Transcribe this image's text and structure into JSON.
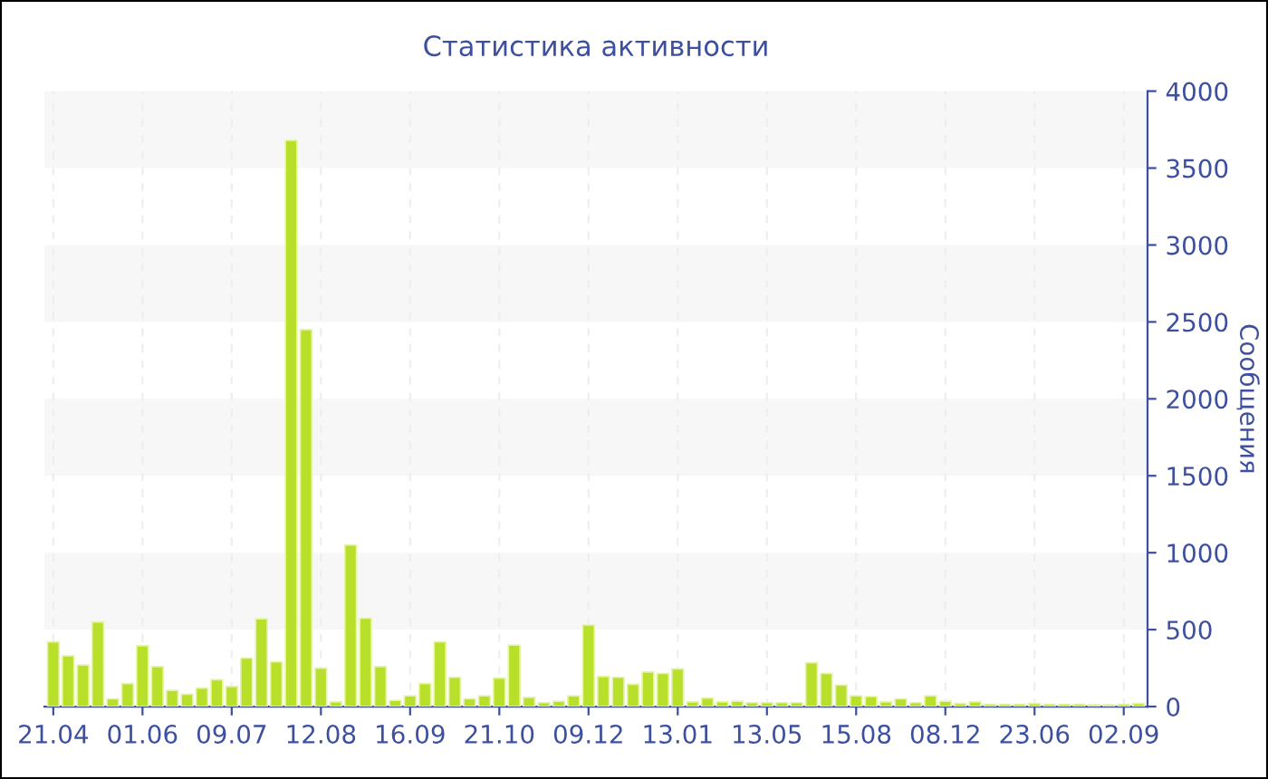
{
  "chart_data": {
    "type": "bar",
    "title": "Статистика активности",
    "ylabel": "Сообщения",
    "categories": [
      "21.04",
      null,
      null,
      null,
      null,
      null,
      "01.06",
      null,
      null,
      null,
      null,
      null,
      "09.07",
      null,
      null,
      null,
      null,
      null,
      "12.08",
      null,
      null,
      null,
      null,
      null,
      "16.09",
      null,
      null,
      null,
      null,
      null,
      "21.10",
      null,
      null,
      null,
      null,
      null,
      "09.12",
      null,
      null,
      null,
      null,
      null,
      "13.01",
      null,
      null,
      null,
      null,
      null,
      "13.05",
      null,
      null,
      null,
      null,
      null,
      "15.08",
      null,
      null,
      null,
      null,
      null,
      "08.12",
      null,
      null,
      null,
      null,
      null,
      "23.06",
      null,
      null,
      null,
      null,
      null,
      "02.09",
      null
    ],
    "values": [
      420,
      330,
      270,
      550,
      50,
      150,
      395,
      260,
      105,
      80,
      120,
      175,
      130,
      315,
      570,
      290,
      3680,
      2450,
      250,
      30,
      1050,
      575,
      260,
      40,
      70,
      150,
      420,
      190,
      50,
      70,
      185,
      400,
      60,
      25,
      35,
      70,
      530,
      195,
      190,
      145,
      225,
      215,
      245,
      30,
      55,
      30,
      35,
      25,
      25,
      25,
      25,
      285,
      215,
      140,
      70,
      65,
      30,
      50,
      25,
      70,
      35,
      20,
      30,
      15,
      15,
      15,
      20,
      15,
      15,
      15,
      12,
      12,
      15,
      20
    ],
    "color": "#b8e02a",
    "ylim": [
      0,
      4000
    ],
    "yticks": [
      0,
      500,
      1000,
      1500,
      2000,
      2500,
      3000,
      3500,
      4000
    ],
    "grid": true
  }
}
